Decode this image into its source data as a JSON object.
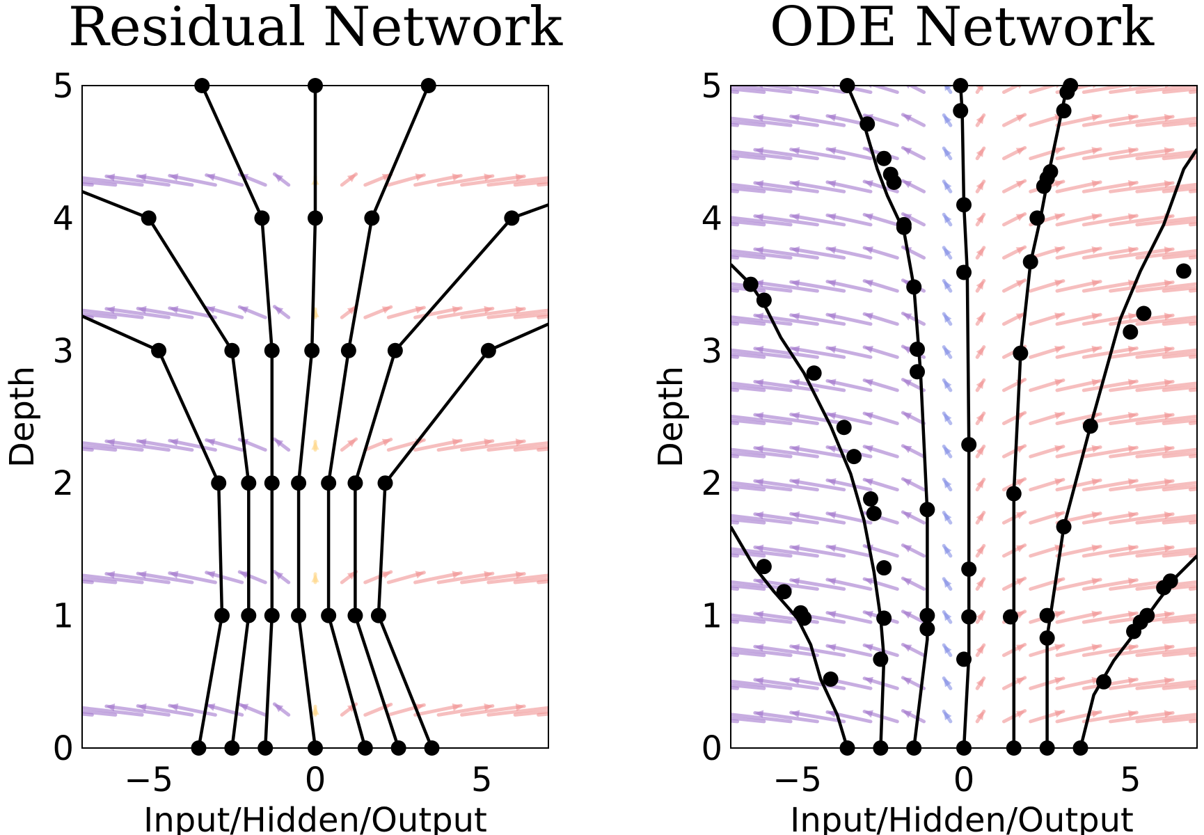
{
  "chart_data": [
    {
      "type": "line",
      "title": "Residual Network",
      "xlabel": "Input/Hidden/Output",
      "ylabel": "Depth",
      "xlim": [
        -7,
        7
      ],
      "ylim": [
        0,
        5
      ],
      "xticks": [
        -5,
        0,
        5
      ],
      "xtick_labels": [
        "−5",
        "0",
        "5"
      ],
      "yticks": [
        0,
        1,
        2,
        3,
        4,
        5
      ],
      "ytick_labels": [
        "0",
        "1",
        "2",
        "3",
        "4",
        "5"
      ],
      "grid": false,
      "background": "vector field arrows only at integer depths (discrete residual steps); purple/blue arrows point left, yellow near center, red point right",
      "trajectories": [
        {
          "x": [
            -3.5,
            -2.8,
            -2.9,
            -4.7,
            -7.0
          ],
          "y": [
            0,
            1,
            2,
            3,
            3.26
          ]
        },
        {
          "x": [
            -2.5,
            -2.0,
            -2.0,
            -2.5,
            -5.0,
            -7.0
          ],
          "y": [
            0,
            1,
            2,
            3,
            4,
            4.2
          ]
        },
        {
          "x": [
            -1.5,
            -1.3,
            -1.3,
            -1.3,
            -1.6,
            -3.4
          ],
          "y": [
            0,
            1,
            2,
            3,
            4,
            5
          ]
        },
        {
          "x": [
            0.0,
            -0.5,
            -0.5,
            -0.1,
            0.0,
            0.0
          ],
          "y": [
            0,
            1,
            2,
            3,
            4,
            5
          ]
        },
        {
          "x": [
            1.5,
            0.4,
            0.4,
            1.0,
            1.7,
            3.4
          ],
          "y": [
            0,
            1,
            2,
            3,
            4,
            5
          ]
        },
        {
          "x": [
            2.5,
            1.2,
            1.2,
            2.4,
            5.9,
            7.0
          ],
          "y": [
            0,
            1,
            2,
            3,
            4,
            4.1
          ]
        },
        {
          "x": [
            3.5,
            1.9,
            2.1,
            5.2,
            7.0
          ],
          "y": [
            0,
            1,
            2,
            3,
            3.2
          ]
        }
      ],
      "marker_points": [
        [
          -3.5,
          0
        ],
        [
          -2.5,
          0
        ],
        [
          -1.5,
          0
        ],
        [
          0.0,
          0
        ],
        [
          1.5,
          0
        ],
        [
          2.5,
          0
        ],
        [
          3.5,
          0
        ],
        [
          -2.8,
          1
        ],
        [
          -2.0,
          1
        ],
        [
          -1.3,
          1
        ],
        [
          -0.5,
          1
        ],
        [
          0.4,
          1
        ],
        [
          1.2,
          1
        ],
        [
          1.9,
          1
        ],
        [
          -2.9,
          2
        ],
        [
          -2.0,
          2
        ],
        [
          -1.3,
          2
        ],
        [
          -0.5,
          2
        ],
        [
          0.4,
          2
        ],
        [
          1.2,
          2
        ],
        [
          2.1,
          2
        ],
        [
          -4.7,
          3
        ],
        [
          -2.5,
          3
        ],
        [
          -1.3,
          3
        ],
        [
          -0.1,
          3
        ],
        [
          1.0,
          3
        ],
        [
          2.4,
          3
        ],
        [
          5.2,
          3
        ],
        [
          -5.0,
          4
        ],
        [
          -1.6,
          4
        ],
        [
          0.0,
          4
        ],
        [
          1.7,
          4
        ],
        [
          5.9,
          4
        ],
        [
          -3.4,
          5
        ],
        [
          0.0,
          5
        ],
        [
          3.4,
          5
        ]
      ],
      "arrow_rows": [
        0.25,
        1.25,
        2.25,
        3.25,
        4.25
      ],
      "arrow_cols": [
        -6.7,
        -6.0,
        -5.2,
        -4.4,
        -3.7,
        -3.0,
        -2.2,
        -1.5,
        -0.8,
        0.0,
        0.8,
        1.5,
        2.2,
        3.0,
        3.7,
        4.4,
        5.2,
        6.0,
        6.7
      ]
    },
    {
      "type": "line",
      "title": "ODE Network",
      "xlabel": "Input/Hidden/Output",
      "ylabel": "Depth",
      "xlim": [
        -7,
        7
      ],
      "ylim": [
        0,
        5
      ],
      "xticks": [
        -5,
        0,
        5
      ],
      "xtick_labels": [
        "−5",
        "0",
        "5"
      ],
      "yticks": [
        0,
        1,
        2,
        3,
        4,
        5
      ],
      "ytick_labels": [
        "0",
        "1",
        "2",
        "3",
        "4",
        "5"
      ],
      "grid": false,
      "background": "dense continuous vector field over the whole domain; purple/blue arrows point left, yellow/blue near center, red point right",
      "trajectories": [
        {
          "x": [
            -7.0,
            -6.3,
            -5.7,
            -5.0,
            -4.6,
            -4.3,
            -3.8,
            -3.5
          ],
          "y": [
            1.67,
            1.37,
            1.18,
            0.98,
            0.78,
            0.52,
            0.25,
            0
          ]
        },
        {
          "x": [
            -7.0,
            -6.4,
            -6.0,
            -5.5,
            -4.8,
            -4.0,
            -3.4,
            -3.0,
            -2.7,
            -2.5,
            -2.4,
            -2.5
          ],
          "y": [
            3.65,
            3.5,
            3.35,
            3.1,
            2.83,
            2.43,
            2.07,
            1.72,
            1.33,
            0.98,
            0.68,
            0
          ]
        },
        {
          "x": [
            -3.5,
            -3.0,
            -2.6,
            -2.3,
            -1.8,
            -1.5,
            -1.3,
            -1.1,
            -1.1,
            -1.1,
            -1.5
          ],
          "y": [
            5,
            4.71,
            4.37,
            4.17,
            3.9,
            3.48,
            2.83,
            1.78,
            0.98,
            0.82,
            0
          ]
        },
        {
          "x": [
            -0.1,
            -0.05,
            0.0,
            0.1,
            0.15,
            0.15,
            0.15,
            0.0
          ],
          "y": [
            5,
            4.8,
            4.1,
            3.6,
            2.3,
            1.35,
            0.7,
            0
          ]
        },
        {
          "x": [
            3.1,
            2.6,
            2.3,
            2.0,
            1.7,
            1.5,
            1.5
          ],
          "y": [
            5,
            4.4,
            4.0,
            3.66,
            2.97,
            1.93,
            0
          ]
        },
        {
          "x": [
            7.0,
            6.6,
            6.0,
            5.3,
            4.7,
            3.8,
            3.0,
            2.6,
            2.5,
            2.5
          ],
          "y": [
            4.52,
            4.37,
            3.95,
            3.6,
            3.24,
            2.43,
            1.67,
            1.0,
            0.84,
            0
          ]
        },
        {
          "x": [
            7.0,
            6.4,
            5.8,
            5.2,
            4.5,
            3.9,
            3.5
          ],
          "y": [
            1.45,
            1.3,
            1.1,
            0.89,
            0.66,
            0.4,
            0
          ]
        }
      ],
      "marker_points": [
        [
          -3.5,
          0
        ],
        [
          -2.5,
          0
        ],
        [
          -1.5,
          0
        ],
        [
          0.0,
          0
        ],
        [
          1.5,
          0
        ],
        [
          2.5,
          0
        ],
        [
          3.5,
          0
        ],
        [
          -4.0,
          0.52
        ],
        [
          -4.8,
          0.98
        ],
        [
          -4.9,
          1.02
        ],
        [
          -5.4,
          1.18
        ],
        [
          -6.0,
          1.37
        ],
        [
          -2.5,
          0.67
        ],
        [
          -2.4,
          0.98
        ],
        [
          -2.4,
          1.36
        ],
        [
          -2.7,
          1.77
        ],
        [
          -2.8,
          1.88
        ],
        [
          -3.3,
          2.2
        ],
        [
          -3.6,
          2.42
        ],
        [
          -4.5,
          2.83
        ],
        [
          -6.0,
          3.38
        ],
        [
          -6.4,
          3.5
        ],
        [
          -1.1,
          0.9
        ],
        [
          -1.1,
          1.0
        ],
        [
          -1.1,
          1.8
        ],
        [
          -1.4,
          2.84
        ],
        [
          -1.4,
          3.01
        ],
        [
          -1.5,
          3.48
        ],
        [
          -1.8,
          3.93
        ],
        [
          -1.8,
          3.95
        ],
        [
          -2.1,
          4.27
        ],
        [
          -2.2,
          4.33
        ],
        [
          -2.4,
          4.45
        ],
        [
          -2.9,
          4.71
        ],
        [
          -3.5,
          5.0
        ],
        [
          -0.1,
          5.0
        ],
        [
          -0.1,
          4.81
        ],
        [
          0.0,
          4.1
        ],
        [
          0.0,
          3.59
        ],
        [
          0.15,
          2.29
        ],
        [
          0.15,
          1.35
        ],
        [
          0.15,
          0.99
        ],
        [
          0.0,
          0.67
        ],
        [
          1.4,
          0.99
        ],
        [
          1.5,
          1.92
        ],
        [
          1.7,
          2.98
        ],
        [
          2.0,
          3.67
        ],
        [
          2.2,
          4.0
        ],
        [
          2.4,
          4.24
        ],
        [
          2.5,
          4.3
        ],
        [
          2.6,
          4.35
        ],
        [
          3.0,
          4.81
        ],
        [
          3.1,
          4.95
        ],
        [
          3.2,
          5.0
        ],
        [
          2.5,
          0.83
        ],
        [
          2.5,
          1.0
        ],
        [
          3.0,
          1.67
        ],
        [
          3.8,
          2.43
        ],
        [
          5.0,
          3.14
        ],
        [
          5.4,
          3.28
        ],
        [
          6.6,
          3.6
        ],
        [
          4.2,
          0.5
        ],
        [
          5.1,
          0.88
        ],
        [
          5.3,
          0.95
        ],
        [
          5.5,
          1.0
        ],
        [
          6.0,
          1.21
        ],
        [
          6.2,
          1.26
        ]
      ],
      "arrow_rows": [
        0.2,
        0.45,
        0.7,
        0.95,
        1.2,
        1.45,
        1.7,
        1.95,
        2.2,
        2.45,
        2.7,
        2.95,
        3.2,
        3.45,
        3.7,
        3.95,
        4.2,
        4.45,
        4.7,
        4.95
      ],
      "arrow_cols": [
        -6.8,
        -6.0,
        -5.2,
        -4.4,
        -3.6,
        -2.8,
        -2.0,
        -1.2,
        -0.4,
        0.4,
        1.2,
        2.0,
        2.8,
        3.6,
        4.4,
        5.2,
        6.0,
        6.8
      ]
    }
  ],
  "colors": {
    "left_far": "#9a6bc9",
    "left_near": "#7b87e3",
    "center_left": "#7ab7ea",
    "center_right": "#ffd27a",
    "right": "#f08a8a"
  }
}
